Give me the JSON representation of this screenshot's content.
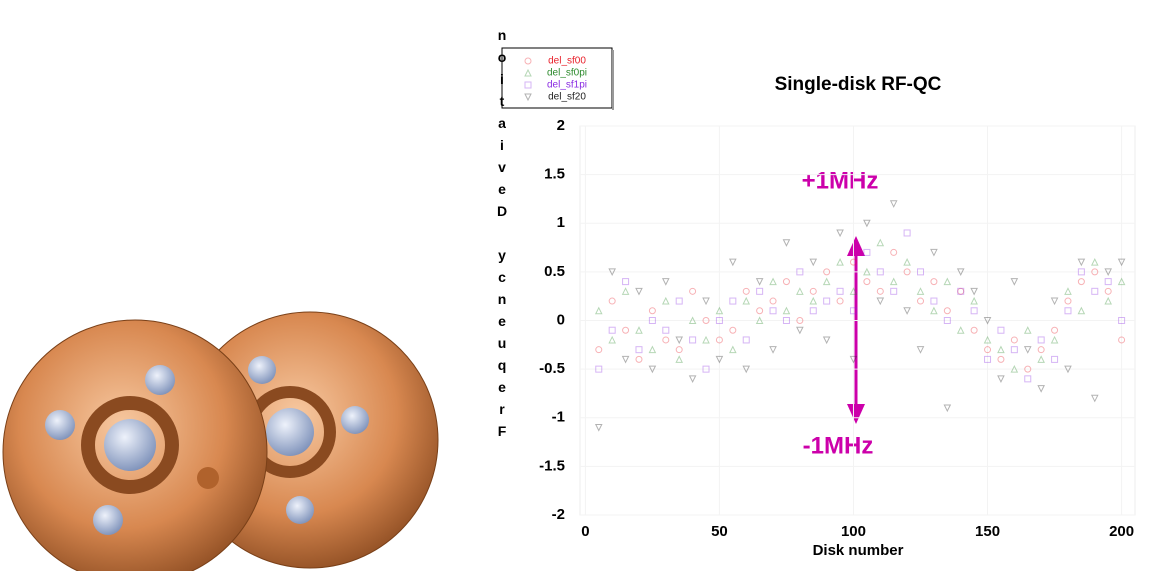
{
  "chart_data": {
    "type": "scatter",
    "title": "Single-disk RF-QC",
    "x_label": "Disk number",
    "y_label": "Frequency Deviation [m",
    "annotations": [
      "+1MHz",
      "-1MHz"
    ],
    "x": [
      5,
      10,
      15,
      20,
      25,
      30,
      35,
      40,
      45,
      50,
      55,
      60,
      65,
      70,
      75,
      80,
      85,
      90,
      95,
      100,
      105,
      110,
      115,
      120,
      125,
      130,
      135,
      140,
      145,
      150,
      155,
      160,
      165,
      170,
      175,
      180,
      185,
      190,
      195,
      200
    ],
    "series": [
      {
        "name": "del_sf00",
        "color": "#e8202a",
        "marker": "circle",
        "values": [
          -0.3,
          0.2,
          -0.1,
          -0.4,
          0.1,
          -0.2,
          -0.3,
          0.3,
          0.0,
          -0.2,
          -0.1,
          0.3,
          0.1,
          0.2,
          0.4,
          0.0,
          0.3,
          0.5,
          0.2,
          0.6,
          0.4,
          0.3,
          0.7,
          0.5,
          0.2,
          0.4,
          0.1,
          0.3,
          -0.1,
          -0.3,
          -0.4,
          -0.2,
          -0.5,
          -0.3,
          -0.1,
          0.2,
          0.4,
          0.5,
          0.3,
          -0.2
        ]
      },
      {
        "name": "del_sf0pi",
        "color": "#2e8b2e",
        "marker": "triangle",
        "values": [
          0.1,
          -0.2,
          0.3,
          -0.1,
          -0.3,
          0.2,
          -0.4,
          0.0,
          -0.2,
          0.1,
          -0.3,
          0.2,
          0.0,
          0.4,
          0.1,
          0.3,
          0.2,
          0.4,
          0.6,
          0.3,
          0.5,
          0.8,
          0.4,
          0.6,
          0.3,
          0.1,
          0.4,
          -0.1,
          0.2,
          -0.2,
          -0.3,
          -0.5,
          -0.1,
          -0.4,
          -0.2,
          0.3,
          0.1,
          0.6,
          0.2,
          0.4
        ]
      },
      {
        "name": "del_sf1pi",
        "color": "#8a2be2",
        "marker": "square",
        "values": [
          -0.5,
          -0.1,
          0.4,
          -0.3,
          0.0,
          -0.1,
          0.2,
          -0.2,
          -0.5,
          0.0,
          0.2,
          -0.2,
          0.3,
          0.1,
          0.0,
          0.5,
          0.1,
          0.2,
          0.3,
          0.1,
          0.7,
          0.5,
          0.3,
          0.9,
          0.5,
          0.2,
          0.0,
          0.3,
          0.1,
          -0.4,
          -0.1,
          -0.3,
          -0.6,
          -0.2,
          -0.4,
          0.1,
          0.5,
          0.3,
          0.4,
          0.0
        ]
      },
      {
        "name": "del_sf20",
        "color": "#222222",
        "marker": "down-triangle",
        "values": [
          -1.1,
          0.5,
          -0.4,
          0.3,
          -0.5,
          0.4,
          -0.2,
          -0.6,
          0.2,
          -0.4,
          0.6,
          -0.5,
          0.4,
          -0.3,
          0.8,
          -0.1,
          0.6,
          -0.2,
          0.9,
          -0.4,
          1.0,
          0.2,
          1.2,
          0.1,
          -0.3,
          0.7,
          -0.9,
          0.5,
          0.3,
          0.0,
          -0.6,
          0.4,
          -0.3,
          -0.7,
          0.2,
          -0.5,
          0.6,
          -0.8,
          0.5,
          0.6
        ]
      }
    ],
    "xlim": [
      -2,
      205
    ],
    "xticks": [
      0,
      50,
      100,
      150,
      200
    ],
    "ylim": [
      -2,
      2
    ],
    "yticks": [
      -2,
      -1.5,
      -1,
      -0.5,
      0,
      0.5,
      1,
      1.5,
      2
    ],
    "grid": true
  }
}
